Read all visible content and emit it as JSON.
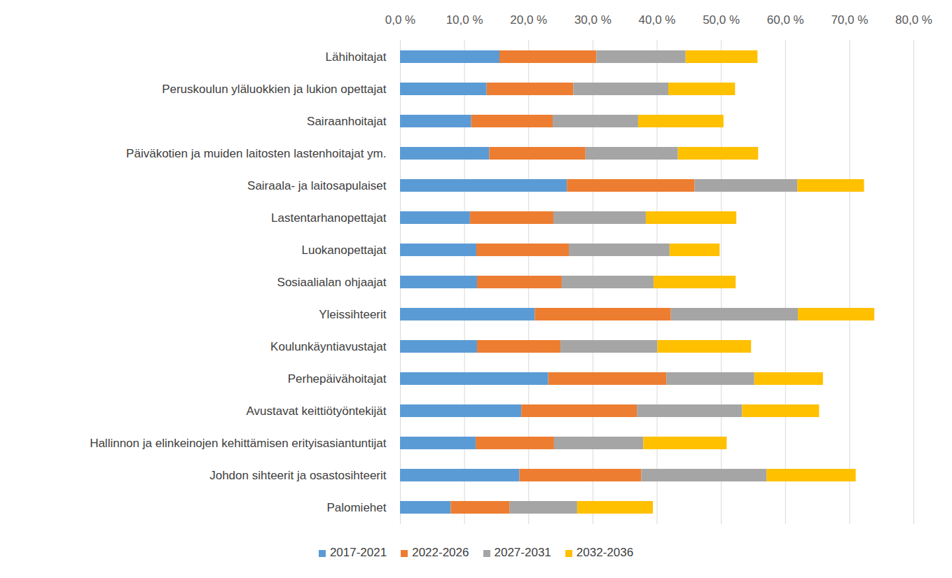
{
  "chart_data": {
    "type": "bar",
    "orientation": "horizontal",
    "stacked": true,
    "grid": true,
    "legend": "bottom",
    "categories": [
      "Lähihoitajat",
      "Peruskoulun yläluokkien ja lukion opettajat",
      "Sairaanhoitajat",
      "Päiväkotien ja muiden laitosten lastenhoitajat ym.",
      "Sairaala- ja laitosapulaiset",
      "Lastentarhanopettajat",
      "Luokanopettajat",
      "Sosiaalialan ohjaajat",
      "Yleissihteerit",
      "Koulunkäyntiavustajat",
      "Perhepäivähoitajat",
      "Avustavat keittiötyöntekijät",
      "Hallinnon ja elinkeinojen kehittämisen erityisasiantuntijat",
      "Johdon sihteerit ja osastosihteerit",
      "Palomiehet"
    ],
    "series": [
      {
        "name": "2017-2021",
        "color": "#5b9bd5",
        "values": [
          15.5,
          13.5,
          11.1,
          13.9,
          26.0,
          10.9,
          11.9,
          12.0,
          21.0,
          12.0,
          23.1,
          18.9,
          11.8,
          18.6,
          7.9
        ]
      },
      {
        "name": "2022-2026",
        "color": "#ed7d31",
        "values": [
          15.1,
          13.5,
          12.7,
          15.0,
          19.9,
          13.0,
          14.4,
          13.2,
          21.2,
          13.0,
          18.4,
          18.0,
          12.2,
          19.0,
          9.2
        ]
      },
      {
        "name": "2027-2031",
        "color": "#a5a5a5",
        "values": [
          13.9,
          14.8,
          13.3,
          14.4,
          16.0,
          14.4,
          15.7,
          14.3,
          19.8,
          15.1,
          13.7,
          16.4,
          13.9,
          19.5,
          10.5
        ]
      },
      {
        "name": "2032-2036",
        "color": "#ffc000",
        "values": [
          11.2,
          10.4,
          13.3,
          12.5,
          10.4,
          14.1,
          7.8,
          12.8,
          11.9,
          14.6,
          10.7,
          12.0,
          13.0,
          13.9,
          11.8
        ]
      }
    ],
    "xlim": [
      0,
      80
    ],
    "xticks": [
      {
        "value": 0,
        "label": "0,0 %"
      },
      {
        "value": 10,
        "label": "10,0 %"
      },
      {
        "value": 20,
        "label": "20,0 %"
      },
      {
        "value": 30,
        "label": "30,0 %"
      },
      {
        "value": 40,
        "label": "40,0 %"
      },
      {
        "value": 50,
        "label": "50,0 %"
      },
      {
        "value": 60,
        "label": "60,0 %"
      },
      {
        "value": 70,
        "label": "70,0 %"
      },
      {
        "value": 80,
        "label": "80,0 %"
      }
    ]
  }
}
